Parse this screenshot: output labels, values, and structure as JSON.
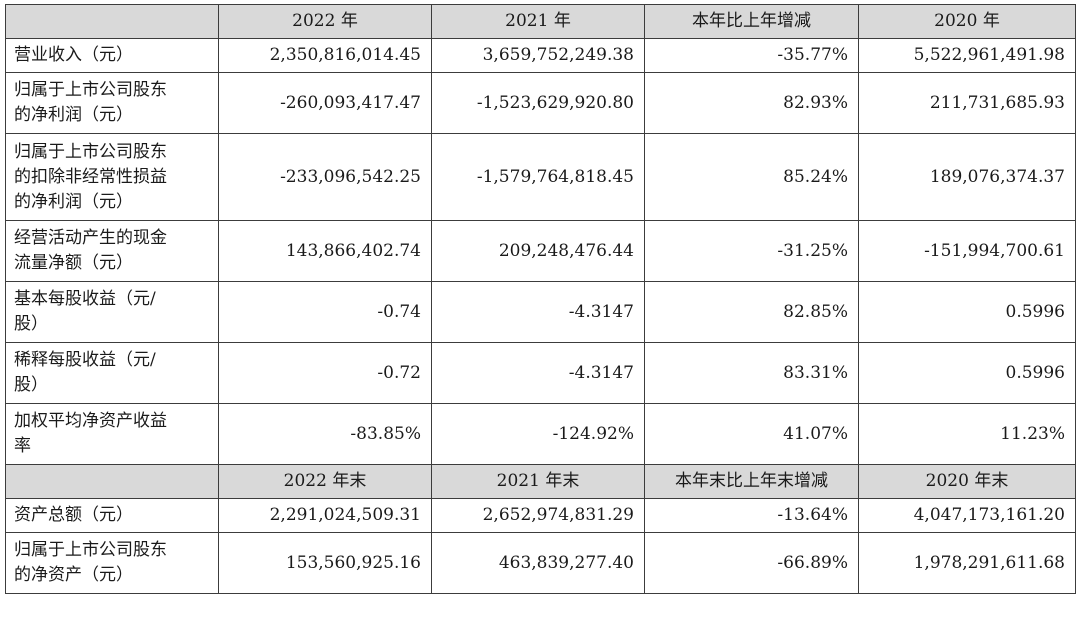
{
  "header1": [
    "",
    "2022 年",
    "2021 年",
    "本年比上年增减",
    "2020 年"
  ],
  "rows1": [
    {
      "label": "营业收入（元）",
      "v2022": "2,350,816,014.45",
      "v2021": "3,659,752,249.38",
      "change": "-35.77%",
      "v2020": "5,522,961,491.98"
    },
    {
      "label": "归属于上市公司股东\n的净利润（元）",
      "v2022": "-260,093,417.47",
      "v2021": "-1,523,629,920.80",
      "change": "82.93%",
      "v2020": "211,731,685.93"
    },
    {
      "label": "归属于上市公司股东\n的扣除非经常性损益\n的净利润（元）",
      "v2022": "-233,096,542.25",
      "v2021": "-1,579,764,818.45",
      "change": "85.24%",
      "v2020": "189,076,374.37"
    },
    {
      "label": "经营活动产生的现金\n流量净额（元）",
      "v2022": "143,866,402.74",
      "v2021": "209,248,476.44",
      "change": "-31.25%",
      "v2020": "-151,994,700.61"
    },
    {
      "label": "基本每股收益（元/\n股）",
      "v2022": "-0.74",
      "v2021": "-4.3147",
      "change": "82.85%",
      "v2020": "0.5996"
    },
    {
      "label": "稀释每股收益（元/\n股）",
      "v2022": "-0.72",
      "v2021": "-4.3147",
      "change": "83.31%",
      "v2020": "0.5996"
    },
    {
      "label": "加权平均净资产收益\n率",
      "v2022": "-83.85%",
      "v2021": "-124.92%",
      "change": "41.07%",
      "v2020": "11.23%"
    }
  ],
  "header2": [
    "",
    "2022 年末",
    "2021 年末",
    "本年末比上年末增减",
    "2020 年末"
  ],
  "rows2": [
    {
      "label": "资产总额（元）",
      "v2022": "2,291,024,509.31",
      "v2021": "2,652,974,831.29",
      "change": "-13.64%",
      "v2020": "4,047,173,161.20"
    },
    {
      "label": "归属于上市公司股东\n的净资产（元）",
      "v2022": "153,560,925.16",
      "v2021": "463,839,277.40",
      "change": "-66.89%",
      "v2020": "1,978,291,611.68"
    }
  ]
}
